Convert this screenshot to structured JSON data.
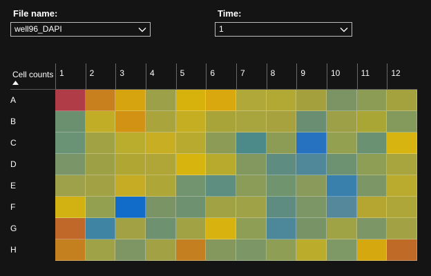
{
  "file": {
    "label": "File name:",
    "value": "well96_DAPI"
  },
  "time": {
    "label": "Time:",
    "value": "1"
  },
  "table": {
    "corner_label": "Cell counts",
    "columns": [
      "1",
      "2",
      "3",
      "4",
      "5",
      "6",
      "7",
      "8",
      "9",
      "10",
      "11",
      "12"
    ],
    "rows": [
      "A",
      "B",
      "C",
      "D",
      "E",
      "F",
      "G",
      "H"
    ]
  },
  "chart_data": {
    "type": "heatmap",
    "x": [
      "1",
      "2",
      "3",
      "4",
      "5",
      "6",
      "7",
      "8",
      "9",
      "10",
      "11",
      "12"
    ],
    "y": [
      "A",
      "B",
      "C",
      "D",
      "E",
      "F",
      "G",
      "H"
    ],
    "cell_colors": [
      [
        "#b03c48",
        "#c8801e",
        "#d6a40e",
        "#9ca048",
        "#d8b20c",
        "#d8a80e",
        "#b0a838",
        "#b2a834",
        "#a4a03e",
        "#7c9464",
        "#8c9c54",
        "#a4a23e"
      ],
      [
        "#6a9070",
        "#c2ae26",
        "#d29214",
        "#aaa43c",
        "#c6ae22",
        "#a8a43a",
        "#a8a43e",
        "#a8a23e",
        "#6a8e72",
        "#9ea048",
        "#aaa636",
        "#849a5c"
      ],
      [
        "#6a9274",
        "#a0a244",
        "#baac2c",
        "#c8ae22",
        "#b8aa2e",
        "#8c9c56",
        "#4c8a8a",
        "#8c9c54",
        "#2672c0",
        "#92a050",
        "#6a9272",
        "#d8b410"
      ],
      [
        "#7a9668",
        "#9ea046",
        "#b0a634",
        "#b0a638",
        "#d8b40e",
        "#b8aa2c",
        "#82985e",
        "#5e8c80",
        "#50889a",
        "#6c9272",
        "#8e9e54",
        "#a8a43e"
      ],
      [
        "#9ea04a",
        "#a2a244",
        "#c6ac24",
        "#aea636",
        "#72946e",
        "#5e8e80",
        "#8a9c58",
        "#70946e",
        "#8a9a5a",
        "#3a80ac",
        "#7c9666",
        "#baaa2e"
      ],
      [
        "#d2b212",
        "#92a050",
        "#106cc8",
        "#7a9466",
        "#6e9270",
        "#a0a244",
        "#a0a248",
        "#5e8c80",
        "#7c9666",
        "#54889a",
        "#b4a630",
        "#aea638"
      ],
      [
        "#c0682a",
        "#4084a4",
        "#a2a244",
        "#6e9270",
        "#a0a244",
        "#d8b20e",
        "#8e9e54",
        "#4c889a",
        "#789466",
        "#a0a246",
        "#7c9666",
        "#a2a244"
      ],
      [
        "#c4801e",
        "#a0a248",
        "#7e9664",
        "#a2a244",
        "#c48020",
        "#84985e",
        "#7c9666",
        "#8e9e54",
        "#bcac2c",
        "#7e9866",
        "#d6a810",
        "#c06a28"
      ]
    ]
  }
}
